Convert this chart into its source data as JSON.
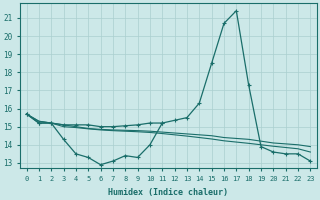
{
  "xlabel": "Humidex (Indice chaleur)",
  "x_values": [
    0,
    1,
    2,
    3,
    4,
    5,
    6,
    7,
    8,
    9,
    10,
    11,
    12,
    13,
    14,
    15,
    16,
    17,
    18,
    19,
    20,
    21,
    22,
    23
  ],
  "line1": [
    15.7,
    15.2,
    15.2,
    15.1,
    15.1,
    15.1,
    15.0,
    15.0,
    15.05,
    15.1,
    15.2,
    15.2,
    15.35,
    15.5,
    16.3,
    18.5,
    20.7,
    21.4,
    17.3,
    13.9,
    13.6,
    13.5,
    13.5,
    13.1
  ],
  "line2_x": [
    0,
    1,
    2,
    3,
    4,
    5,
    6,
    7,
    8,
    9,
    10,
    11
  ],
  "line2_y": [
    15.7,
    15.2,
    15.2,
    14.3,
    13.5,
    13.3,
    12.9,
    13.1,
    13.4,
    13.3,
    14.0,
    15.2
  ],
  "line3": [
    15.7,
    15.3,
    15.2,
    15.1,
    15.0,
    14.9,
    14.85,
    14.82,
    14.8,
    14.78,
    14.75,
    14.7,
    14.65,
    14.6,
    14.55,
    14.5,
    14.4,
    14.35,
    14.3,
    14.2,
    14.1,
    14.05,
    14.0,
    13.9
  ],
  "line4": [
    15.7,
    15.3,
    15.2,
    15.0,
    14.95,
    14.88,
    14.82,
    14.78,
    14.75,
    14.72,
    14.68,
    14.62,
    14.55,
    14.48,
    14.4,
    14.32,
    14.22,
    14.15,
    14.08,
    14.0,
    13.92,
    13.85,
    13.78,
    13.6
  ],
  "bg_color": "#cce8e8",
  "line_color": "#1a6e6a",
  "grid_color": "#aacfcf",
  "ylim": [
    12.7,
    21.8
  ],
  "yticks": [
    13,
    14,
    15,
    16,
    17,
    18,
    19,
    20,
    21
  ],
  "xlim": [
    -0.5,
    23.5
  ]
}
